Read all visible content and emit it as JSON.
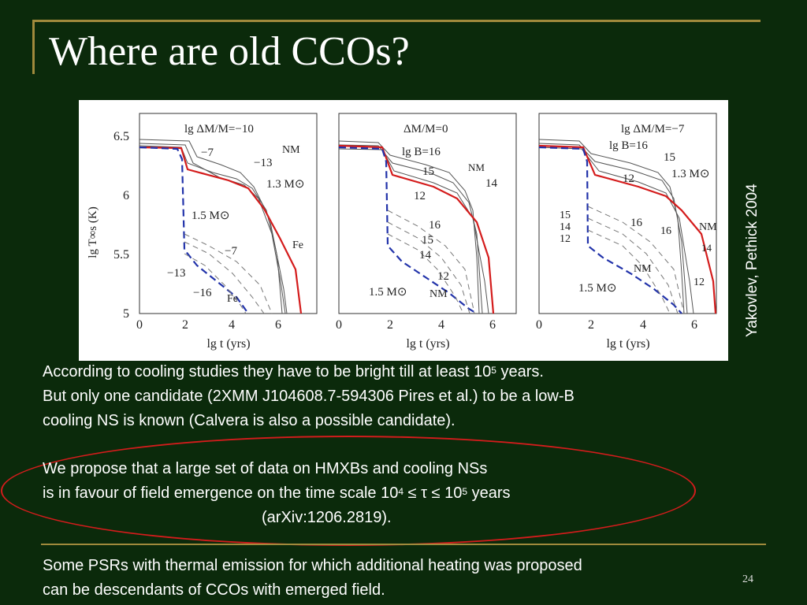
{
  "slide": {
    "title": "Where are old CCOs?",
    "credit": "Yakovlev, Pethick 2004",
    "page_number": "24",
    "para1_a": "According to cooling studies they have to be bright till at least 10",
    "para1_a_sup": "5",
    "para1_a_end": " years.",
    "para1_b": "But only one candidate (2XMM J104608.7-594306 Pires et al.) to be a low-B",
    "para1_c": "cooling NS is known (Calvera is also a possible candidate).",
    "para2_a": "We propose that a large set of data on HMXBs and cooling NSs",
    "para2_b": "is in favour of field emergence on the time scale 10",
    "para2_b_sup1": "4",
    "para2_b_mid": " ≤ τ ≤ 10",
    "para2_b_sup2": "5",
    "para2_b_end": " years",
    "para2_c": "(arXiv:1206.2819).",
    "para3_a": "Some PSRs with thermal emission for which additional heating was proposed",
    "para3_b": "can be descendants of CCOs with emerged field."
  },
  "figure": {
    "ylabel": "lg T∞s (K)",
    "xlabel": "lg t   (yrs)",
    "y_ticks": [
      "6.5",
      "6",
      "5.5",
      "5"
    ],
    "x_ticks": [
      "0",
      "2",
      "4",
      "6"
    ],
    "panels": [
      {
        "labels": [
          "lg ΔM/M=−10",
          "−7",
          "NM",
          "−13",
          "1.3 M⊙",
          "1.5 M⊙",
          "Fe",
          "−7",
          "−13",
          "−16",
          "Fe"
        ]
      },
      {
        "labels": [
          "ΔM/M=0",
          "lg B=16",
          "15",
          "NM",
          "14",
          "12",
          "16",
          "15",
          "14",
          "12",
          "1.5 M⊙",
          "NM"
        ]
      },
      {
        "labels": [
          "lg ΔM/M=−7",
          "lg B=16",
          "15",
          "12",
          "1.3 M⊙",
          "15",
          "14",
          "12",
          "16",
          "16",
          "NM",
          "14",
          "NM",
          "1.5 M⊙",
          "12"
        ]
      }
    ]
  }
}
